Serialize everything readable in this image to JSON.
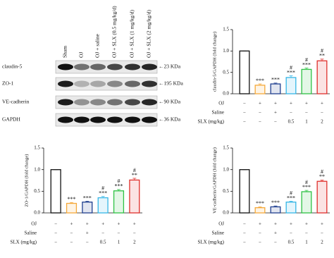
{
  "blot": {
    "columns": [
      "Sham",
      "OJ",
      "OJ + saline",
      "OJ + SLX (0.5 mg/kg/d)",
      "OJ + SLX (1 mg/kg/d)",
      "OJ + SLX (2 mg/kg/d)"
    ],
    "rows": [
      {
        "label": "claudin-5",
        "size": "←23 KDa"
      },
      {
        "label": "ZO-1",
        "size": "←195 KDa"
      },
      {
        "label": "VE-cadherin",
        "size": "←90 KDa"
      },
      {
        "label": "GAPDH",
        "size": "←36 KDa"
      }
    ]
  },
  "chart_data": [
    {
      "type": "bar",
      "ylabel": "claudin-5/GAPDH (fold change)",
      "categories": [
        null,
        null,
        null,
        null,
        null,
        null
      ],
      "values": [
        1.0,
        0.2,
        0.23,
        0.38,
        0.57,
        0.77
      ],
      "errors": [
        0,
        0.03,
        0.02,
        0.04,
        0.03,
        0.04
      ],
      "colors": [
        "#111111",
        "#f5a93a",
        "#1f3f8f",
        "#35b6e6",
        "#2ec244",
        "#e0302c"
      ],
      "annotations": [
        [],
        [
          "***"
        ],
        [
          "***"
        ],
        [
          "#",
          "***"
        ],
        [
          "#",
          "***"
        ],
        [
          "#",
          "**"
        ]
      ],
      "rows": [
        {
          "label": "OJ",
          "values": [
            "−",
            "+",
            "+",
            "+",
            "+",
            "+"
          ]
        },
        {
          "label": "Saline",
          "values": [
            "−",
            "−",
            "+",
            "−",
            "−",
            "−"
          ]
        },
        {
          "label": "SLX (mg/kg)",
          "values": [
            "−",
            "−",
            "−",
            "0.5",
            "1",
            "2"
          ]
        }
      ],
      "ylim": [
        0,
        1.5
      ],
      "yticks": [
        {
          "value": 0,
          "label": "0.0"
        },
        0.5,
        {
          "value": 1,
          "label": "1.0"
        },
        1.5
      ]
    },
    {
      "type": "bar",
      "ylabel": "ZO-1/GAPDH (fold change)",
      "categories": [
        null,
        null,
        null,
        null,
        null,
        null
      ],
      "values": [
        1.0,
        0.22,
        0.25,
        0.35,
        0.51,
        0.76
      ],
      "errors": [
        0,
        0.02,
        0.02,
        0.03,
        0.03,
        0.04
      ],
      "colors": [
        "#111111",
        "#f5a93a",
        "#1f3f8f",
        "#35b6e6",
        "#2ec244",
        "#e0302c"
      ],
      "annotations": [
        [],
        [
          "***"
        ],
        [
          "***"
        ],
        [
          "#",
          "***"
        ],
        [
          "#",
          "***"
        ],
        [
          "#",
          "**"
        ]
      ],
      "rows": [
        {
          "label": "OJ",
          "values": [
            "−",
            "+",
            "+",
            "+",
            "+",
            "+"
          ]
        },
        {
          "label": "Saline",
          "values": [
            "−",
            "−",
            "+",
            "−",
            "−",
            "−"
          ]
        },
        {
          "label": "SLX (mg/kg)",
          "values": [
            "−",
            "−",
            "−",
            "0.5",
            "1",
            "2"
          ]
        }
      ],
      "ylim": [
        0,
        1.5
      ],
      "yticks": [
        {
          "value": 0,
          "label": "0.0"
        },
        0.5,
        {
          "value": 1,
          "label": "1.0"
        },
        1.5
      ]
    },
    {
      "type": "bar",
      "ylabel": "VE-cadherin/GAPDH (fold change)",
      "categories": [
        null,
        null,
        null,
        null,
        null,
        null
      ],
      "values": [
        1.0,
        0.12,
        0.14,
        0.25,
        0.49,
        0.73
      ],
      "errors": [
        0,
        0.02,
        0.02,
        0.02,
        0.03,
        0.03
      ],
      "colors": [
        "#111111",
        "#f5a93a",
        "#1f3f8f",
        "#35b6e6",
        "#2ec244",
        "#e0302c"
      ],
      "annotations": [
        [],
        [
          "***"
        ],
        [
          "***"
        ],
        [
          "#",
          "***"
        ],
        [
          "#",
          "***"
        ],
        [
          "#",
          "**"
        ]
      ],
      "rows": [
        {
          "label": "OJ",
          "values": [
            "−",
            "+",
            "+",
            "+",
            "+",
            "+"
          ]
        },
        {
          "label": "Saline",
          "values": [
            "−",
            "−",
            "+",
            "−",
            "−",
            "−"
          ]
        },
        {
          "label": "SLX (mg/kg)",
          "values": [
            "−",
            "−",
            "−",
            "0.5",
            "1",
            "2"
          ]
        }
      ],
      "ylim": [
        0,
        1.5
      ],
      "yticks": [
        {
          "value": 0,
          "label": "0.0"
        },
        0.5,
        {
          "value": 1,
          "label": "1.0"
        },
        1.5
      ]
    }
  ]
}
